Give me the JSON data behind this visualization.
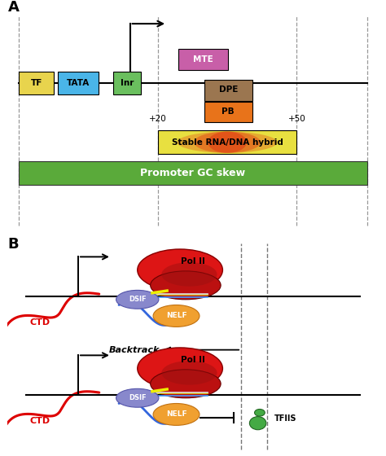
{
  "panel_A_label": "A",
  "panel_B_label": "B",
  "tf_color": "#e8d44d",
  "tata_color": "#4ab5e8",
  "inr_color": "#6abf5e",
  "mte_color": "#c85fa8",
  "dpe_color": "#9b7650",
  "pb_color": "#e8731a",
  "gc_skew_color": "#5aaa3a",
  "bg_color": "#ffffff",
  "label_20": "+20",
  "label_50": "+50",
  "stable_rna_text": "Stable RNA/DNA hybrid",
  "promoter_gc_text": "Promoter GC skew",
  "ctd_color": "#dd0000",
  "dsif_color": "#8888cc",
  "nelf_color": "#f0a030",
  "pol2_color": "#cc2020",
  "pol2_dark": "#881010",
  "backtrack_text": "Backtrack",
  "tfiis_text": "TFIIS",
  "ctd_text": "CTD",
  "polII_text": "Pol II",
  "dsif_text": "DSIF",
  "nelf_text": "NELF"
}
